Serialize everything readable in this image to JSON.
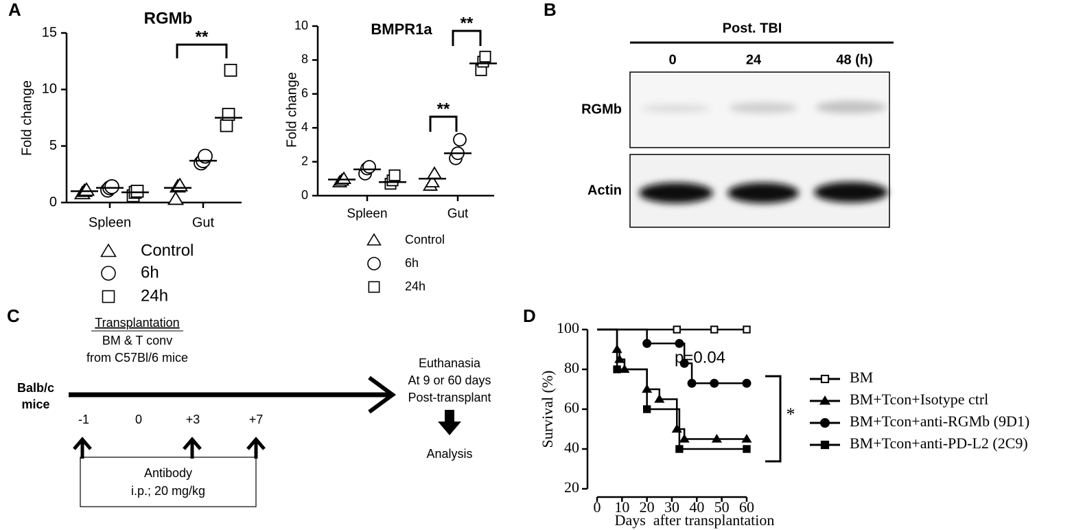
{
  "panel_labels": [
    "A",
    "B",
    "C",
    "D"
  ],
  "chart_data": [
    {
      "type": "dotplot",
      "title": "RGMb",
      "ylabel": "Fold change",
      "categories": [
        "Spleen",
        "Gut"
      ],
      "ylim": [
        0,
        15
      ],
      "yticks": [
        0,
        5,
        10,
        15
      ],
      "series": [
        {
          "name": "Control",
          "marker": "triangle",
          "values": [
            [
              0.8,
              1.0,
              1.1
            ],
            [
              0.3,
              1.4,
              1.5
            ]
          ],
          "means": [
            1.0,
            1.3
          ]
        },
        {
          "name": "6h",
          "marker": "circle",
          "values": [
            [
              1.1,
              1.3,
              1.4
            ],
            [
              3.5,
              3.7,
              4.1
            ]
          ],
          "means": [
            1.3,
            3.7
          ]
        },
        {
          "name": "24h",
          "marker": "square",
          "values": [
            [
              0.6,
              0.9,
              1.0
            ],
            [
              6.8,
              7.8,
              11.7
            ]
          ],
          "means": [
            0.9,
            7.5
          ]
        }
      ],
      "annotations": [
        "**"
      ]
    },
    {
      "type": "dotplot",
      "title": "BMPR1a",
      "ylabel": "Fold change",
      "categories": [
        "Spleen",
        "Gut"
      ],
      "ylim": [
        0,
        10
      ],
      "yticks": [
        0,
        2,
        4,
        6,
        8,
        10
      ],
      "series": [
        {
          "name": "Control",
          "marker": "triangle",
          "values": [
            [
              0.8,
              0.9,
              1.0
            ],
            [
              0.6,
              0.8,
              1.3
            ]
          ],
          "means": [
            0.95,
            1.0
          ]
        },
        {
          "name": "6h",
          "marker": "circle",
          "values": [
            [
              1.3,
              1.6,
              1.7
            ],
            [
              2.2,
              2.5,
              3.3
            ]
          ],
          "means": [
            1.55,
            2.5
          ]
        },
        {
          "name": "24h",
          "marker": "square",
          "values": [
            [
              0.7,
              0.9,
              1.2
            ],
            [
              7.4,
              7.9,
              8.2
            ]
          ],
          "means": [
            0.8,
            7.8
          ]
        }
      ],
      "annotations": [
        "**",
        "**"
      ]
    },
    {
      "type": "step",
      "xlabel": "Days  after transplantation",
      "ylabel": "Survival (%)",
      "xlim": [
        0,
        60
      ],
      "xticks": [
        0,
        10,
        20,
        30,
        40,
        50,
        60
      ],
      "ylim": [
        20,
        100
      ],
      "yticks": [
        20,
        40,
        60,
        80,
        100
      ],
      "series": [
        {
          "name": "BM",
          "marker": "open-square",
          "x": [
            0,
            32,
            47,
            60
          ],
          "values": [
            100,
            100,
            100,
            100
          ]
        },
        {
          "name": "BM+Tcon+Isotype ctrl",
          "marker": "triangle",
          "x": [
            0,
            8,
            9,
            11,
            20,
            25,
            32,
            35,
            48,
            60
          ],
          "values": [
            100,
            90,
            85,
            80,
            70,
            65,
            50,
            45,
            45,
            45
          ]
        },
        {
          "name": "BM+Tcon+anti-RGMb (9D1)",
          "marker": "circle",
          "x": [
            0,
            20,
            33,
            35,
            38,
            47,
            60
          ],
          "values": [
            100,
            93,
            93,
            83,
            73,
            73,
            73
          ]
        },
        {
          "name": "BM+Tcon+anti-PD-L2 (2C9)",
          "marker": "square",
          "x": [
            0,
            8,
            20,
            33,
            60
          ],
          "values": [
            100,
            80,
            60,
            40,
            40
          ]
        }
      ],
      "annotations": [
        "p=0.04",
        "*"
      ]
    }
  ],
  "blot": {
    "title": "Post. TBI",
    "lanes": [
      "0",
      "24",
      "48 (h)"
    ],
    "rows": [
      "RGMb",
      "Actin"
    ]
  },
  "diagram": {
    "heading": "Transplantation",
    "transplant_lines": [
      "BM & T conv",
      "from C57Bl/6 mice"
    ],
    "recipient": [
      "Balb/c",
      "mice"
    ],
    "timepoints": [
      "-1",
      "0",
      "+3",
      "+7"
    ],
    "antibody": [
      "Antibody",
      "i.p.; 20 mg/kg"
    ],
    "endpoint": [
      "Euthanasia",
      "At 9 or 60 days",
      "Post-transplant"
    ],
    "analysis": "Analysis"
  }
}
